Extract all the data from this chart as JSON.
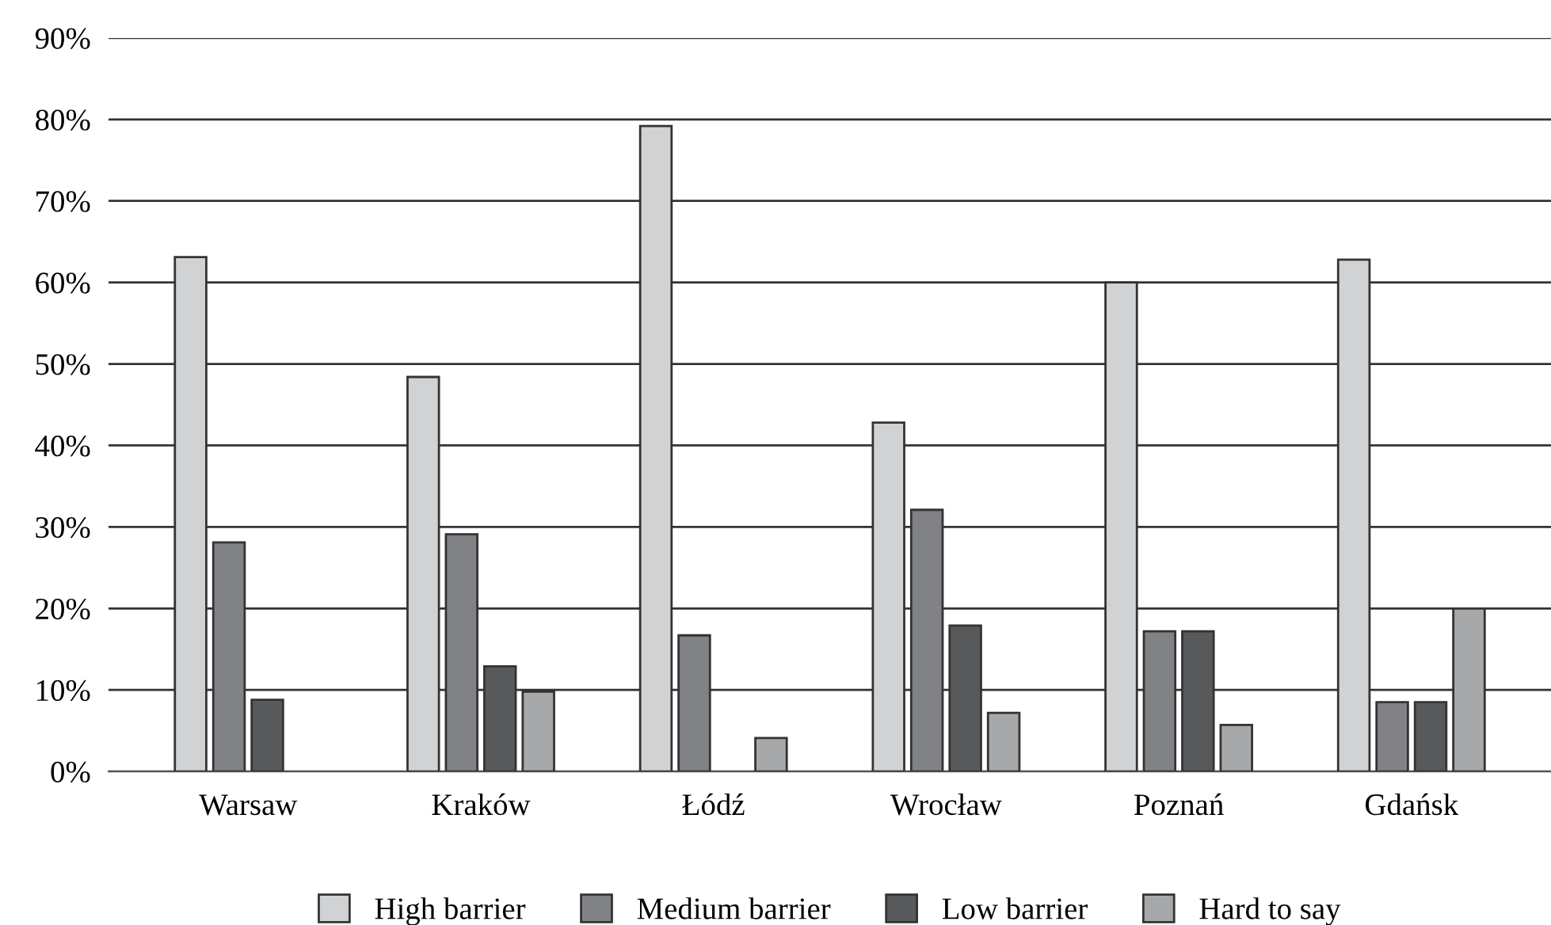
{
  "chart_data": {
    "type": "bar",
    "categories": [
      "Warsaw",
      "Kraków",
      "Łódź",
      "Wrocław",
      "Poznań",
      "Gdańsk"
    ],
    "series": [
      {
        "name": "High barrier",
        "color": "#d1d2d4",
        "values": [
          63.1,
          48.4,
          79.2,
          42.8,
          60.0,
          62.8
        ]
      },
      {
        "name": "Medium barrier",
        "color": "#818286",
        "values": [
          28.1,
          29.1,
          16.7,
          32.1,
          17.2,
          8.5
        ]
      },
      {
        "name": "Low barrier",
        "color": "#58595b",
        "values": [
          8.8,
          12.9,
          null,
          17.9,
          17.2,
          8.5
        ]
      },
      {
        "name": "Hard to say",
        "color": "#a7a8aa",
        "values": [
          null,
          9.8,
          4.1,
          7.2,
          5.7,
          20.0
        ]
      }
    ],
    "ylim": [
      0,
      90
    ],
    "yticks": [
      {
        "value": 0,
        "label": "0%"
      },
      {
        "value": 10,
        "label": "10%"
      },
      {
        "value": 20,
        "label": "20%"
      },
      {
        "value": 30,
        "label": "30%"
      },
      {
        "value": 40,
        "label": "40%"
      },
      {
        "value": 50,
        "label": "50%"
      },
      {
        "value": 60,
        "label": "60%"
      },
      {
        "value": 70,
        "label": "70%"
      },
      {
        "value": 80,
        "label": "80%"
      },
      {
        "value": 90,
        "label": "90%"
      }
    ],
    "grid": "y",
    "legend": "bottom"
  }
}
